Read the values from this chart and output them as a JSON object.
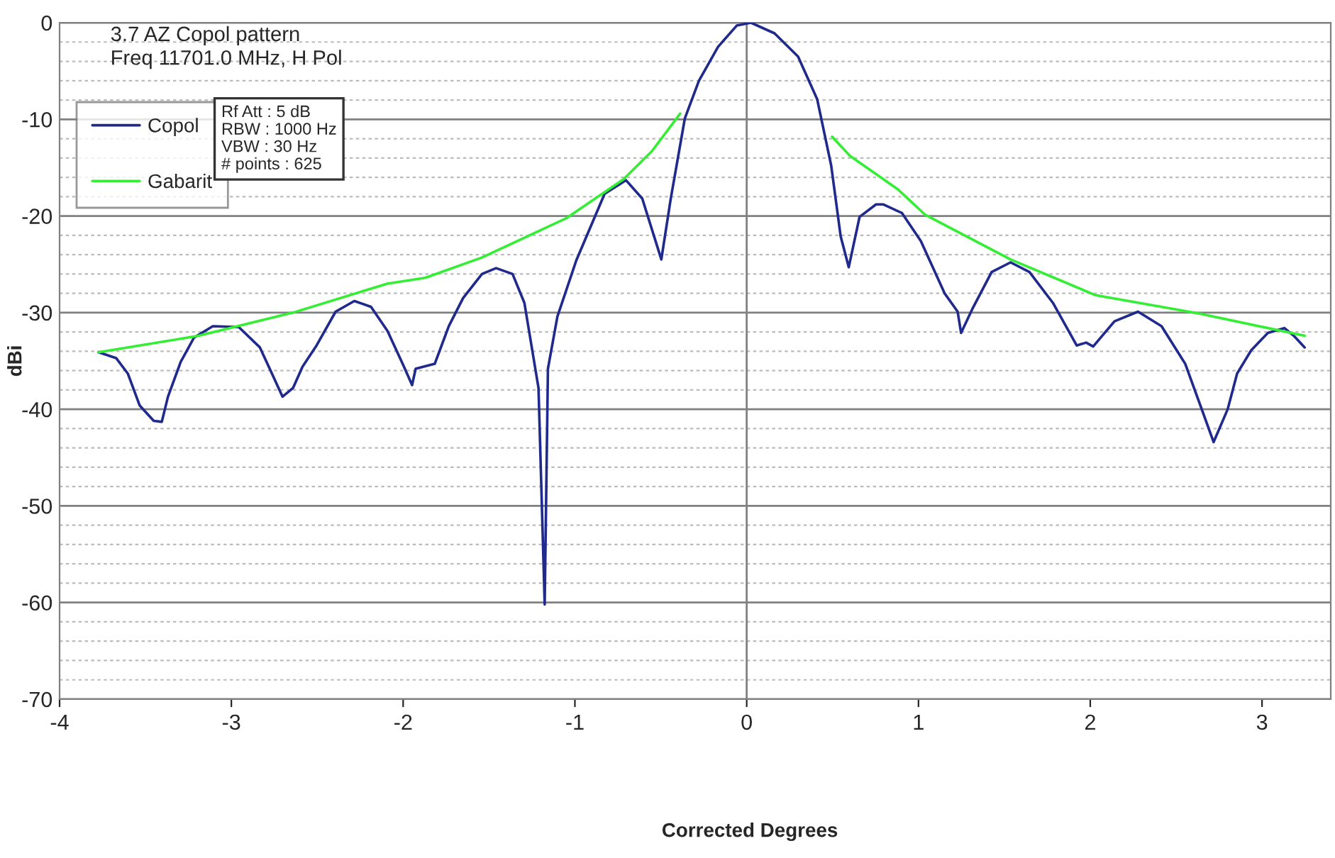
{
  "chart_data": {
    "type": "line",
    "title": "3.7 AZ Copol pattern",
    "subtitle": "Freq 11701.0 MHz, H Pol",
    "xlabel": "Corrected Degrees",
    "ylabel": "dBi",
    "annotations": [
      "Rf Att : 5 dB\nRBW : 1000 Hz\nVBW : 30 Hz\n# points : 625"
    ],
    "series": [
      {
        "name": "Copol",
        "color": "#1f2a8c",
        "x": [
          -3.773,
          -3.671,
          -3.603,
          -3.534,
          -3.452,
          -3.405,
          -3.369,
          -3.295,
          -3.218,
          -3.108,
          -2.957,
          -2.834,
          -2.764,
          -2.702,
          -2.641,
          -2.586,
          -2.504,
          -2.393,
          -2.284,
          -2.187,
          -2.091,
          -1.995,
          -1.948,
          -1.927,
          -1.816,
          -1.734,
          -1.651,
          -1.541,
          -1.459,
          -1.363,
          -1.294,
          -1.212,
          -1.176,
          -1.157,
          -1.102,
          -0.992,
          -0.827,
          -0.703,
          -0.608,
          -0.497,
          -0.442,
          -0.36,
          -0.278,
          -0.167,
          -0.058,
          0.025,
          0.162,
          0.299,
          0.41,
          0.492,
          0.547,
          0.594,
          0.657,
          0.753,
          0.794,
          0.904,
          1.014,
          1.152,
          1.228,
          1.248,
          1.317,
          1.426,
          1.536,
          1.646,
          1.783,
          1.921,
          1.976,
          2.017,
          2.141,
          2.278,
          2.415,
          2.553,
          2.649,
          2.718,
          2.8,
          2.855,
          2.937,
          3.034,
          3.13,
          3.185,
          3.248
        ],
        "values": [
          -34.1,
          -34.7,
          -36.3,
          -39.6,
          -41.2,
          -41.3,
          -38.7,
          -35.1,
          -32.6,
          -31.4,
          -31.5,
          -33.6,
          -36.3,
          -38.7,
          -37.8,
          -35.6,
          -33.4,
          -29.9,
          -28.8,
          -29.4,
          -31.9,
          -35.6,
          -37.5,
          -35.8,
          -35.3,
          -31.4,
          -28.5,
          -26.0,
          -25.4,
          -26.0,
          -29.0,
          -37.8,
          -60.2,
          -35.8,
          -30.4,
          -24.6,
          -17.7,
          -16.3,
          -18.2,
          -24.5,
          -18.2,
          -9.9,
          -6.0,
          -2.5,
          -0.3,
          0,
          -1.1,
          -3.5,
          -7.9,
          -14.8,
          -22.1,
          -25.3,
          -20.1,
          -18.8,
          -18.8,
          -19.7,
          -22.6,
          -28.0,
          -29.9,
          -32.1,
          -29.5,
          -25.8,
          -24.8,
          -25.8,
          -29.0,
          -33.4,
          -33.1,
          -33.5,
          -30.9,
          -29.9,
          -31.4,
          -35.3,
          -40.0,
          -43.4,
          -40.0,
          -36.3,
          -33.9,
          -32.1,
          -31.6,
          -32.4,
          -33.6
        ]
      },
      {
        "name": "Gabarit",
        "color": "#33ee33",
        "x": [
          -3.773,
          -3.191,
          -2.641,
          -2.091,
          -1.871,
          -1.541,
          -1.047,
          -0.717,
          -0.552,
          -0.387,
          0,
          0.497,
          0.602,
          0.877,
          1.041,
          1.536,
          2.031,
          2.636,
          3.248
        ],
        "values": [
          -34.1,
          -32.4,
          -30.0,
          -27.0,
          -26.4,
          -24.3,
          -20.2,
          -16.2,
          -13.3,
          -9.4,
          null,
          -11.8,
          -13.8,
          -17.2,
          -19.9,
          -24.5,
          -28.2,
          -30.1,
          -32.4
        ]
      }
    ],
    "xlim": [
      -4,
      3.4
    ],
    "xticks": [
      -4,
      -3,
      -2,
      -1,
      0,
      1,
      2,
      3
    ],
    "ylim": [
      -70,
      0
    ],
    "yticks": [
      -70,
      {
        "value": -68,
        "label": null
      },
      {
        "value": -66,
        "label": null
      },
      {
        "value": -64,
        "label": null
      },
      {
        "value": -62,
        "label": null
      },
      -60,
      {
        "value": -58,
        "label": null
      },
      {
        "value": -56,
        "label": null
      },
      {
        "value": -54,
        "label": null
      },
      {
        "value": -52,
        "label": null
      },
      -50,
      {
        "value": -48,
        "label": null
      },
      {
        "value": -46,
        "label": null
      },
      {
        "value": -44,
        "label": null
      },
      {
        "value": -42,
        "label": null
      },
      -40,
      {
        "value": -38,
        "label": null
      },
      {
        "value": -36,
        "label": null
      },
      {
        "value": -34,
        "label": null
      },
      {
        "value": -32,
        "label": null
      },
      -30,
      {
        "value": -28,
        "label": null
      },
      {
        "value": -26,
        "label": null
      },
      {
        "value": -24,
        "label": null
      },
      {
        "value": -22,
        "label": null
      },
      -20,
      {
        "value": -18,
        "label": null
      },
      {
        "value": -16,
        "label": null
      },
      {
        "value": -14,
        "label": null
      },
      {
        "value": -12,
        "label": null
      },
      -10,
      {
        "value": -8,
        "label": null
      },
      {
        "value": -6,
        "label": null
      },
      {
        "value": -4,
        "label": null
      },
      {
        "value": -2,
        "label": null
      },
      0
    ],
    "ref_lines": [
      {
        "axis": "x",
        "value": 0,
        "color": "#808080"
      }
    ],
    "grid": "y",
    "legend": "top left",
    "marker": "none",
    "line_style": "solid"
  }
}
